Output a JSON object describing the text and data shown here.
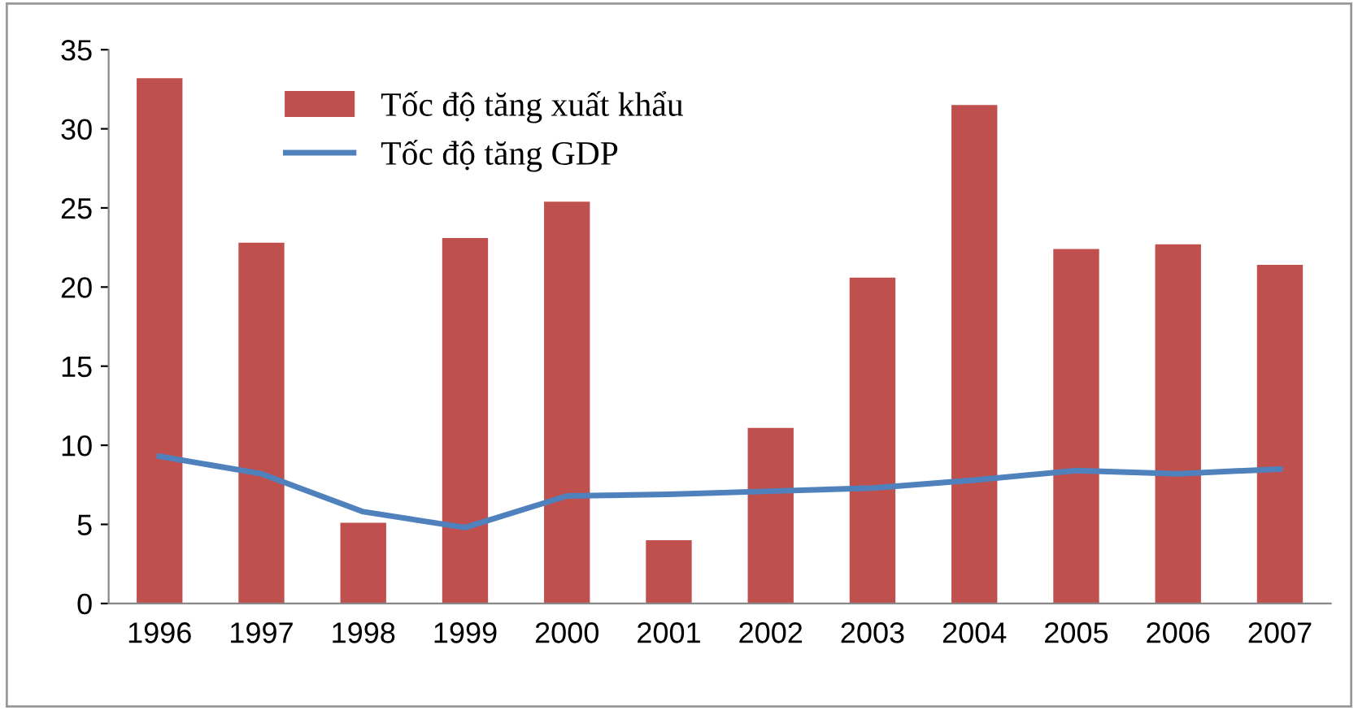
{
  "chart_data": {
    "type": "bar",
    "categories": [
      "1996",
      "1997",
      "1998",
      "1999",
      "2000",
      "2001",
      "2002",
      "2003",
      "2004",
      "2005",
      "2006",
      "2007"
    ],
    "series": [
      {
        "name": "Tốc độ tăng xuất khẩu",
        "color": "#c0504d",
        "values": [
          33.2,
          22.8,
          5.1,
          23.1,
          25.4,
          4.0,
          11.1,
          20.6,
          31.5,
          22.4,
          22.7,
          21.4
        ]
      },
      {
        "name": "Tốc độ tăng GDP",
        "type": "line",
        "color": "#4f81bd",
        "values": [
          9.3,
          8.2,
          5.8,
          4.8,
          6.8,
          6.9,
          7.1,
          7.3,
          7.8,
          8.4,
          8.2,
          8.5
        ]
      }
    ],
    "ylim": [
      0,
      35
    ],
    "yticks": [
      0,
      5,
      10,
      15,
      20,
      25,
      30,
      35
    ],
    "grid": false,
    "legend": "top left",
    "marker": "none",
    "line_style": "solid"
  }
}
